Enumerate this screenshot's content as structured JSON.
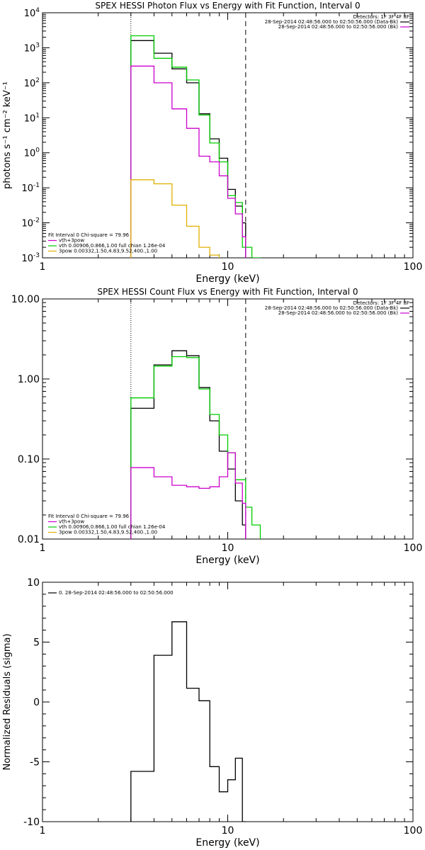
{
  "chart_data": [
    {
      "type": "line",
      "title": "SPEX HESSI Photon Flux vs Energy with Fit Function, Interval 0",
      "xlabel": "Energy (keV)",
      "ylabel": "photons s⁻¹ cm⁻² keV⁻¹",
      "xscale": "log",
      "yscale": "log",
      "xlim": [
        1,
        100
      ],
      "ylim": [
        0.001,
        10000
      ],
      "x_ticks": [
        {
          "v": 1,
          "label": "1"
        },
        {
          "v": 10,
          "label": "10"
        },
        {
          "v": 100,
          "label": "100"
        }
      ],
      "y_ticks": [
        {
          "v": 0.001,
          "base": "10",
          "exp": "-3"
        },
        {
          "v": 0.01,
          "base": "10",
          "exp": "-2"
        },
        {
          "v": 0.1,
          "base": "10",
          "exp": "-1"
        },
        {
          "v": 1,
          "base": "10",
          "exp": "0"
        },
        {
          "v": 10,
          "base": "10",
          "exp": "1"
        },
        {
          "v": 100,
          "base": "10",
          "exp": "2"
        },
        {
          "v": 1000,
          "base": "10",
          "exp": "3"
        },
        {
          "v": 10000,
          "base": "10",
          "exp": "4"
        }
      ],
      "vlines": [
        {
          "x": 3.0,
          "style": "dotted"
        },
        {
          "x": 12.5,
          "style": "dashed"
        }
      ],
      "header_right": [
        {
          "text": "Detectors: 1F 3F 4F 8F",
          "color": ""
        },
        {
          "text": "28-Sep-2014 02:48:56.000 to 02:50:56.000 (Data-Bk)",
          "color": "#000000"
        },
        {
          "text": "28-Sep-2014 02:48:56.000 to 02:50:56.000 (Bk)",
          "color": "#cc00cc"
        }
      ],
      "legend": [
        {
          "text": "Fit Interval 0   Chi-square = 79.96",
          "color": ""
        },
        {
          "text": "vth+3pow",
          "color": "#cc00cc"
        },
        {
          "text": "vth 0.00906,0.866,1.00   full chian 1.26e-04",
          "color": "#00cc00"
        },
        {
          "text": "3pow 0.00332,1.50,4.83,9.52,400.,1.00",
          "color": "#e0b000"
        }
      ],
      "series": [
        {
          "color": "#000000",
          "edges": [
            3.0,
            4.0,
            5.0,
            6.0,
            7.0,
            8.0,
            9.0,
            10.0,
            11.0,
            12.0,
            12.5
          ],
          "values": [
            1600,
            700,
            250,
            100,
            13,
            2.5,
            0.7,
            0.09,
            0.03,
            0.01
          ]
        },
        {
          "color": "#00cc00",
          "edges": [
            3.0,
            4.0,
            5.0,
            6.0,
            7.0,
            8.0,
            9.0,
            10.0,
            11.0,
            12.0,
            13.5,
            15.0
          ],
          "values": [
            2200,
            500,
            280,
            120,
            12,
            1.9,
            0.55,
            0.06,
            0.038,
            0.002,
            0.001
          ]
        },
        {
          "color": "#cc00cc",
          "edges": [
            3.0,
            4.0,
            5.0,
            6.0,
            7.0,
            8.0,
            9.0,
            10.0,
            11.0,
            12.0,
            12.5
          ],
          "values": [
            300,
            100,
            18,
            5,
            0.8,
            0.55,
            0.22,
            0.05,
            0.018,
            0.004
          ]
        },
        {
          "color": "#e0b000",
          "edges": [
            3.0,
            4.0,
            5.0,
            6.0,
            7.0,
            8.0,
            9.0
          ],
          "values": [
            0.17,
            0.13,
            0.032,
            0.008,
            0.002,
            0.0012
          ]
        }
      ]
    },
    {
      "type": "line",
      "title": "SPEX HESSI Count Flux vs Energy with Fit Function, Interval 0",
      "xlabel": "Energy (keV)",
      "ylabel": "",
      "xscale": "log",
      "yscale": "log",
      "xlim": [
        1,
        100
      ],
      "ylim": [
        0.01,
        10
      ],
      "x_ticks": [
        {
          "v": 1,
          "label": "1"
        },
        {
          "v": 10,
          "label": "10"
        },
        {
          "v": 100,
          "label": "100"
        }
      ],
      "y_ticks": [
        {
          "v": 0.01,
          "label": "0.01"
        },
        {
          "v": 0.1,
          "label": "0.10"
        },
        {
          "v": 1,
          "label": "1.00"
        },
        {
          "v": 10,
          "label": "10.00"
        }
      ],
      "vlines": [
        {
          "x": 3.0,
          "style": "dotted"
        },
        {
          "x": 12.5,
          "style": "dashed"
        }
      ],
      "header_right": [
        {
          "text": "Detectors: 1F 3F 4F 8F",
          "color": ""
        },
        {
          "text": "28-Sep-2014 02:48:56.000 to 02:50:56.000 (Data-Bk)",
          "color": "#000000"
        },
        {
          "text": "28-Sep-2014 02:48:56.000 to 02:50:56.000 (Bk)",
          "color": "#cc00cc"
        }
      ],
      "legend": [
        {
          "text": "Fit Interval 0   Chi-square = 79.96",
          "color": ""
        },
        {
          "text": "vth+3pow",
          "color": "#cc00cc"
        },
        {
          "text": "vth 0.00906,0.866,1.00   full chian 1.26e-04",
          "color": "#00cc00"
        },
        {
          "text": "3pow 0.00332,1.50,4.83,9.52,400.,1.00",
          "color": "#e0b000"
        }
      ],
      "series": [
        {
          "color": "#000000",
          "edges": [
            3.0,
            4.0,
            5.0,
            6.0,
            7.0,
            8.0,
            9.0,
            10.0,
            11.0,
            12.0,
            12.5
          ],
          "values": [
            0.43,
            1.5,
            2.25,
            1.95,
            0.78,
            0.3,
            0.125,
            0.075,
            0.03,
            0.015
          ]
        },
        {
          "color": "#00cc00",
          "edges": [
            3.0,
            4.0,
            5.0,
            6.0,
            7.0,
            8.0,
            9.0,
            10.0,
            11.0,
            12.5,
            13.5,
            15.0
          ],
          "values": [
            0.58,
            1.45,
            1.9,
            1.85,
            0.75,
            0.36,
            0.2,
            0.12,
            0.055,
            0.025,
            0.015
          ]
        },
        {
          "color": "#cc00cc",
          "edges": [
            3.0,
            4.0,
            5.0,
            6.0,
            7.0,
            8.0,
            9.0,
            10.0,
            11.0,
            12.0,
            12.5
          ],
          "values": [
            0.078,
            0.06,
            0.047,
            0.045,
            0.043,
            0.045,
            0.06,
            0.12,
            0.05,
            0.028
          ]
        }
      ]
    },
    {
      "type": "line",
      "title": "",
      "xlabel": "Energy (keV)",
      "ylabel": "Normalized Residuals (sigma)",
      "xscale": "log",
      "yscale": "linear",
      "xlim": [
        1,
        100
      ],
      "ylim": [
        -10,
        10
      ],
      "x_ticks": [
        {
          "v": 1,
          "label": "1"
        },
        {
          "v": 10,
          "label": "10"
        },
        {
          "v": 100,
          "label": "100"
        }
      ],
      "y_ticks": [
        {
          "v": -10,
          "label": "-10"
        },
        {
          "v": -5,
          "label": "-5"
        },
        {
          "v": 0,
          "label": "0"
        },
        {
          "v": 5,
          "label": "5"
        },
        {
          "v": 10,
          "label": "10"
        }
      ],
      "vlines": [],
      "header_right": [],
      "legend": [
        {
          "text": "0. 28-Sep-2014 02:48:56.000 to 02:50:56.000",
          "color": "#000000"
        }
      ],
      "series": [
        {
          "color": "#000000",
          "edges": [
            3.0,
            4.0,
            5.0,
            6.0,
            7.0,
            8.0,
            9.0,
            10.0,
            11.0,
            12.0,
            12.5
          ],
          "values": [
            -5.8,
            3.9,
            6.7,
            1.15,
            0.1,
            -5.4,
            -7.5,
            -6.5,
            -4.7,
            -10
          ]
        }
      ]
    }
  ]
}
